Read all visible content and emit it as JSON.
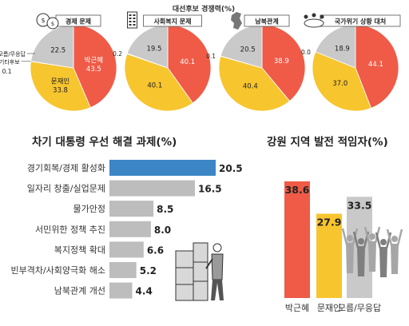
{
  "colors": {
    "park": "#ef5b47",
    "moon": "#f7c52e",
    "undecided": "#c9c9c9",
    "other": "#222222",
    "issue_bar": "#3d86c6",
    "issue_bar_rest": "#bdbdbd",
    "pie_label_bg": "#ffffff"
  },
  "chart_data": [
    {
      "type": "pie",
      "title": "대선후보 경쟁력(%)",
      "charts": [
        {
          "title": "경제 문제",
          "icon": "money-bags-icon",
          "slices": [
            {
              "name": "박근혜",
              "value": 43.5
            },
            {
              "name": "문재인",
              "value": 33.8
            },
            {
              "name": "기타후보",
              "value": 0.1
            },
            {
              "name": "모름/무응답",
              "value": 22.5
            }
          ]
        },
        {
          "title": "사회복지 문제",
          "icon": "building-icon",
          "slices": [
            {
              "name": "박근혜",
              "value": 40.1
            },
            {
              "name": "문재인",
              "value": 40.1
            },
            {
              "name": "기타후보",
              "value": 0.2
            },
            {
              "name": "모름/무응답",
              "value": 19.5
            }
          ]
        },
        {
          "title": "남북관계",
          "icon": "korea-map-icon",
          "slices": [
            {
              "name": "박근혜",
              "value": 38.9
            },
            {
              "name": "문재인",
              "value": 40.4
            },
            {
              "name": "기타후보",
              "value": 0.1
            },
            {
              "name": "모름/무응답",
              "value": 20.5
            }
          ]
        },
        {
          "title": "국가위기 상황 대처",
          "icon": "meeting-table-icon",
          "slices": [
            {
              "name": "박근혜",
              "value": 44.1
            },
            {
              "name": "문재인",
              "value": 37.0
            },
            {
              "name": "기타후보",
              "value": 0.0
            },
            {
              "name": "모름/무응답",
              "value": 18.9
            }
          ]
        }
      ]
    },
    {
      "type": "bar",
      "orientation": "horizontal",
      "title": "차기 대통령 우선 해결 과제(%)",
      "categories": [
        "경기회복/경제 활성화",
        "일자리 창출/실업문제",
        "물가안정",
        "서민위한 정책 추진",
        "복지정책 확대",
        "빈부격차/사회양극화 해소",
        "남북관계 개선"
      ],
      "values": [
        20.5,
        16.5,
        8.5,
        8.0,
        6.6,
        5.2,
        4.4
      ],
      "highlight_index": 0,
      "icon": "office-worker-icon"
    },
    {
      "type": "bar",
      "orientation": "vertical",
      "title": "강원 지역 발전 적임자(%)",
      "categories": [
        "박근혜",
        "문재인",
        "모름/무응답"
      ],
      "values": [
        38.6,
        27.9,
        33.5
      ],
      "icon": "cheering-people-icon"
    }
  ]
}
